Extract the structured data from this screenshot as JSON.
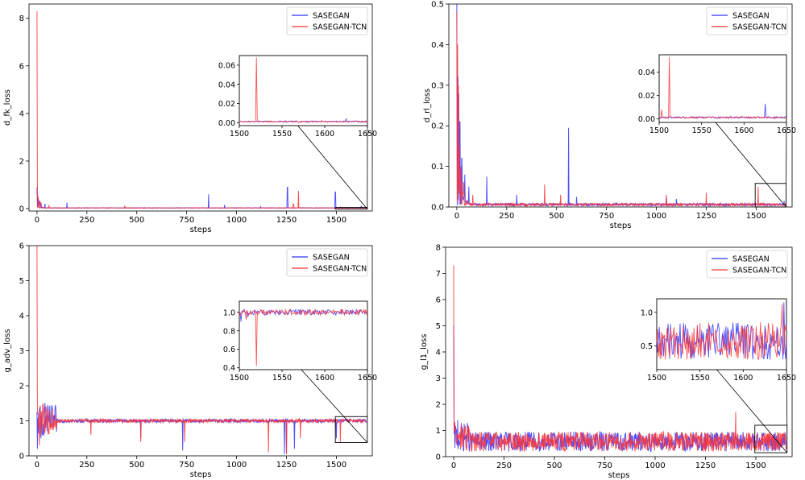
{
  "chart_data": [
    {
      "type": "line",
      "xlabel": "steps",
      "ylabel": "d_fk_loss",
      "xlim": [
        -40,
        1680
      ],
      "ylim": [
        -0.1,
        8.6
      ],
      "xticks": [
        0,
        250,
        500,
        750,
        1000,
        1250,
        1500
      ],
      "yticks": [
        0,
        2,
        4,
        6,
        8
      ],
      "legend_position": "top-right",
      "baseline": 0.02,
      "series": [
        {
          "name": "SASEGAN",
          "color": "#3333ff",
          "spikes": [
            [
              0,
              0.9
            ],
            [
              5,
              0.45
            ],
            [
              10,
              0.35
            ],
            [
              20,
              0.25
            ],
            [
              40,
              0.2
            ],
            [
              150,
              0.25
            ],
            [
              860,
              0.6
            ],
            [
              940,
              0.15
            ],
            [
              1120,
              0.1
            ],
            [
              1255,
              0.9
            ],
            [
              1495,
              0.7
            ],
            [
              1625,
              0.1
            ]
          ]
        },
        {
          "name": "SASEGAN-TCN",
          "color": "#ff3333",
          "spikes": [
            [
              0,
              8.3
            ],
            [
              2,
              1.1
            ],
            [
              6,
              0.5
            ],
            [
              15,
              0.3
            ],
            [
              60,
              0.15
            ],
            [
              440,
              0.12
            ],
            [
              1285,
              0.2
            ],
            [
              1310,
              0.75
            ],
            [
              1520,
              0.07
            ]
          ]
        }
      ],
      "inset": {
        "xlim": [
          1500,
          1650
        ],
        "ylim": [
          -0.003,
          0.07
        ],
        "xticks": [
          1500,
          1550,
          1600,
          1650
        ],
        "yticks": [
          0.0,
          0.02,
          0.04,
          0.06
        ],
        "series": [
          {
            "name": "SASEGAN",
            "spikes": [
              [
                1625,
                0.004
              ]
            ]
          },
          {
            "name": "SASEGAN-TCN",
            "spikes": [
              [
                1520,
                0.068
              ]
            ]
          }
        ]
      }
    },
    {
      "type": "line",
      "xlabel": "steps",
      "ylabel": "d_rl_loss",
      "xlim": [
        -40,
        1680
      ],
      "ylim": [
        0,
        0.5
      ],
      "xticks": [
        0,
        250,
        500,
        750,
        1000,
        1250,
        1500
      ],
      "yticks": [
        0.0,
        0.1,
        0.2,
        0.3,
        0.4,
        0.5
      ],
      "legend_position": "top-right",
      "baseline": 0.003,
      "series": [
        {
          "name": "SASEGAN",
          "color": "#3333ff",
          "spikes": [
            [
              0,
              0.5
            ],
            [
              5,
              0.32
            ],
            [
              10,
              0.28
            ],
            [
              15,
              0.21
            ],
            [
              25,
              0.12
            ],
            [
              40,
              0.08
            ],
            [
              60,
              0.05
            ],
            [
              150,
              0.075
            ],
            [
              300,
              0.03
            ],
            [
              560,
              0.195
            ],
            [
              600,
              0.025
            ],
            [
              1050,
              0.025
            ],
            [
              1100,
              0.02
            ],
            [
              1640,
              0.015
            ]
          ]
        },
        {
          "name": "SASEGAN-TCN",
          "color": "#ff3333",
          "spikes": [
            [
              0,
              0.48
            ],
            [
              4,
              0.4
            ],
            [
              8,
              0.3
            ],
            [
              12,
              0.15
            ],
            [
              20,
              0.1
            ],
            [
              35,
              0.06
            ],
            [
              80,
              0.03
            ],
            [
              440,
              0.055
            ],
            [
              520,
              0.03
            ],
            [
              1050,
              0.03
            ],
            [
              1250,
              0.035
            ],
            [
              1510,
              0.05
            ]
          ]
        }
      ],
      "inset": {
        "xlim": [
          1500,
          1650
        ],
        "ylim": [
          -0.003,
          0.055
        ],
        "xticks": [
          1500,
          1550,
          1600,
          1650
        ],
        "yticks": [
          0.0,
          0.02,
          0.04
        ],
        "series": [
          {
            "name": "SASEGAN",
            "spikes": [
              [
                1625,
                0.013
              ]
            ]
          },
          {
            "name": "SASEGAN-TCN",
            "spikes": [
              [
                1512,
                0.053
              ],
              [
                1503,
                0.008
              ]
            ]
          }
        ]
      }
    },
    {
      "type": "line",
      "xlabel": "steps",
      "ylabel": "g_adv_loss",
      "xlim": [
        -40,
        1680
      ],
      "ylim": [
        0,
        6
      ],
      "xticks": [
        0,
        250,
        500,
        750,
        1000,
        1250,
        1500
      ],
      "yticks": [
        0,
        1,
        2,
        3,
        4,
        5,
        6
      ],
      "legend_position": "top-right",
      "baseline": 1.0,
      "series": [
        {
          "name": "SASEGAN",
          "color": "#3333ff",
          "spikes": [
            [
              2,
              0.2
            ],
            [
              20,
              0.5
            ],
            [
              40,
              1.5
            ],
            [
              520,
              0.5
            ],
            [
              730,
              0.15
            ],
            [
              1240,
              0.05
            ],
            [
              1250,
              0.05
            ],
            [
              1290,
              0.2
            ],
            [
              1500,
              0.5
            ]
          ]
        },
        {
          "name": "SASEGAN-TCN",
          "color": "#ff3333",
          "spikes": [
            [
              0,
              6.0
            ],
            [
              5,
              1.2
            ],
            [
              12,
              0.3
            ],
            [
              30,
              1.5
            ],
            [
              270,
              0.6
            ],
            [
              520,
              0.4
            ],
            [
              740,
              0.4
            ],
            [
              1160,
              0.1
            ],
            [
              1250,
              0.05
            ],
            [
              1320,
              0.5
            ],
            [
              1520,
              0.4
            ]
          ]
        }
      ],
      "inset": {
        "xlim": [
          1500,
          1650
        ],
        "ylim": [
          0.38,
          1.12
        ],
        "xticks": [
          1500,
          1550,
          1600,
          1650
        ],
        "yticks": [
          0.4,
          0.6,
          0.8,
          1.0
        ],
        "series": [
          {
            "name": "SASEGAN",
            "spikes": [
              [
                1502,
                0.9
              ],
              [
                1510,
                0.95
              ],
              [
                1530,
                0.97
              ]
            ]
          },
          {
            "name": "SASEGAN-TCN",
            "spikes": [
              [
                1520,
                0.42
              ],
              [
                1508,
                0.92
              ]
            ]
          }
        ]
      }
    },
    {
      "type": "line",
      "xlabel": "steps",
      "ylabel": "g_l1_loss",
      "xlim": [
        -40,
        1680
      ],
      "ylim": [
        0,
        8
      ],
      "xticks": [
        0,
        250,
        500,
        750,
        1000,
        1250,
        1500
      ],
      "yticks": [
        0,
        1,
        2,
        3,
        4,
        5,
        6,
        7,
        8
      ],
      "legend_position": "top-right",
      "baseline": 0.55,
      "series": [
        {
          "name": "SASEGAN",
          "color": "#3333ff",
          "spikes": [
            [
              0,
              5.0
            ],
            [
              20,
              1.4
            ]
          ]
        },
        {
          "name": "SASEGAN-TCN",
          "color": "#ff3333",
          "spikes": [
            [
              0,
              7.3
            ],
            [
              5,
              1.3
            ],
            [
              1400,
              1.7
            ]
          ]
        }
      ],
      "inset": {
        "xlim": [
          1500,
          1650
        ],
        "ylim": [
          0.15,
          1.2
        ],
        "xticks": [
          1500,
          1550,
          1600,
          1650
        ],
        "yticks": [
          0.5,
          1.0
        ],
        "series": [
          {
            "name": "SASEGAN",
            "spikes": [
              [
                1647,
                1.15
              ]
            ]
          },
          {
            "name": "SASEGAN-TCN",
            "spikes": [
              [
                1645,
                1.12
              ]
            ]
          }
        ]
      }
    }
  ]
}
